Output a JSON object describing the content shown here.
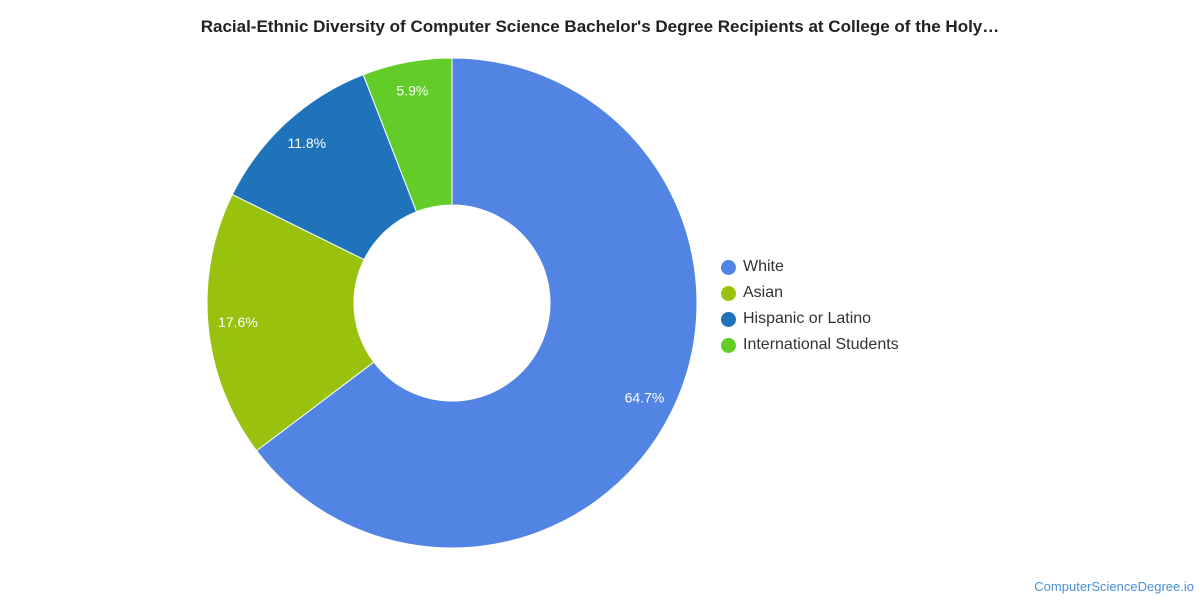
{
  "chart_data": {
    "type": "pie",
    "donut": true,
    "title": "Racial-Ethnic Diversity of Computer Science Bachelor's Degree Recipients at College of the Holy…",
    "categories": [
      "White",
      "Asian",
      "Hispanic or Latino",
      "International Students"
    ],
    "values": [
      64.7,
      17.6,
      11.8,
      5.9
    ],
    "data_labels": [
      "64.7%",
      "17.6%",
      "11.8%",
      "5.9%"
    ],
    "colors": [
      "#5285e3",
      "#99c20e",
      "#1e73bb",
      "#62cd28"
    ],
    "legend_position": "right"
  },
  "source": "ComputerScienceDegree.io"
}
